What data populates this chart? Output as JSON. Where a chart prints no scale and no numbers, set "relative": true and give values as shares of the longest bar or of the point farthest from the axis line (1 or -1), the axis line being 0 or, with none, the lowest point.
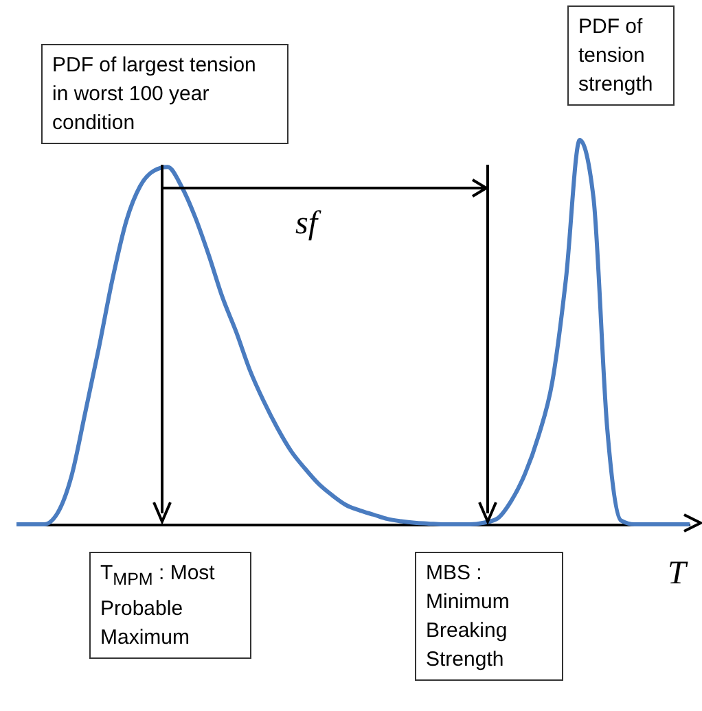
{
  "chart_data": {
    "type": "line",
    "relative": true,
    "xlabel": "T",
    "annotations": [
      "PDF of largest tension in worst 100 year condition",
      "PDF of tension strength",
      "sf",
      "T$_{MPM}$ : Most Probable Maximum",
      "MBS : Minimum Breaking Strength"
    ],
    "categories": [
      null,
      null,
      null,
      null,
      null,
      null,
      null,
      null,
      null,
      null,
      null,
      null,
      null,
      null,
      null,
      null,
      null,
      null,
      null,
      null,
      null,
      null,
      null,
      null,
      null,
      null,
      null,
      null,
      null,
      null,
      null,
      null,
      null,
      null,
      null,
      null,
      null,
      null,
      null,
      null,
      null,
      null,
      null,
      null,
      null,
      null,
      null,
      null,
      null,
      null
    ],
    "series": [
      {
        "color": "#4a7cc0",
        "values": [
          0,
          0,
          0,
          0.03,
          0.125,
          0.29,
          0.46,
          0.64,
          0.79,
          0.88,
          0.92,
          0.93,
          0.88,
          0.8,
          0.7,
          0.59,
          0.5,
          0.4,
          0.32,
          0.25,
          0.19,
          0.145,
          0.105,
          0.075,
          0.05,
          0.036,
          0.025,
          0.014,
          0.008,
          0.004,
          0.002,
          0,
          0,
          0,
          0.004,
          0.015,
          0.06,
          0.13,
          0.23,
          0.37,
          0.64,
          1,
          0.85,
          0.25,
          0.01,
          0,
          0,
          0,
          0,
          0
        ]
      }
    ]
  }
}
